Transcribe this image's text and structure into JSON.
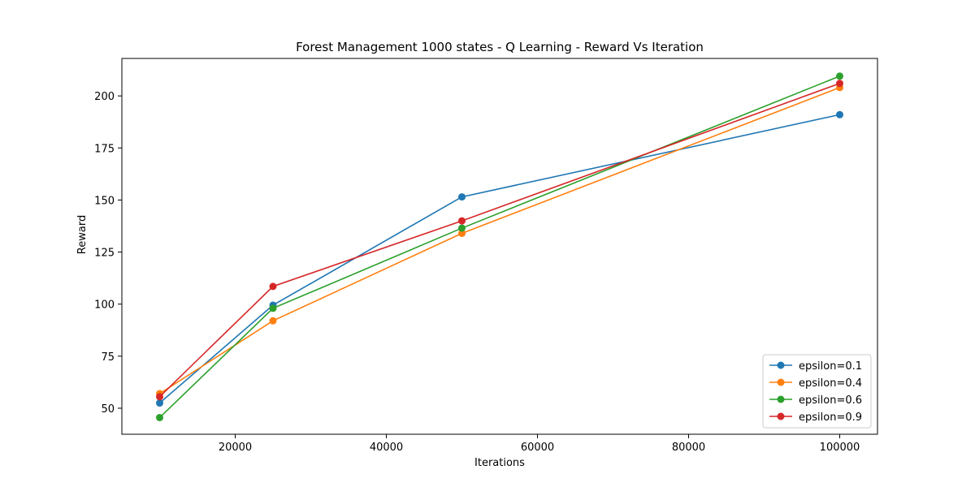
{
  "chart_data": {
    "type": "line",
    "title": "Forest Management 1000 states - Q Learning - Reward Vs Iteration",
    "xlabel": "Iterations",
    "ylabel": "Reward",
    "x": [
      10000,
      25000,
      50000,
      100000
    ],
    "xlim": [
      5000,
      105000
    ],
    "ylim": [
      37.5,
      218
    ],
    "xticks": [
      20000,
      40000,
      60000,
      80000,
      100000
    ],
    "yticks": [
      50,
      75,
      100,
      125,
      150,
      175,
      200
    ],
    "grid": false,
    "legend_position": "lower-right",
    "markers": true,
    "series": [
      {
        "name": "epsilon=0.1",
        "color": "#1f77b4",
        "values": [
          52.5,
          99.5,
          151.5,
          191.0
        ]
      },
      {
        "name": "epsilon=0.4",
        "color": "#ff7f0e",
        "values": [
          57.0,
          92.0,
          134.0,
          204.0
        ]
      },
      {
        "name": "epsilon=0.6",
        "color": "#2ca02c",
        "values": [
          45.5,
          98.0,
          136.5,
          209.5
        ]
      },
      {
        "name": "epsilon=0.9",
        "color": "#d62728",
        "values": [
          55.5,
          108.5,
          140.0,
          206.0
        ]
      }
    ]
  }
}
